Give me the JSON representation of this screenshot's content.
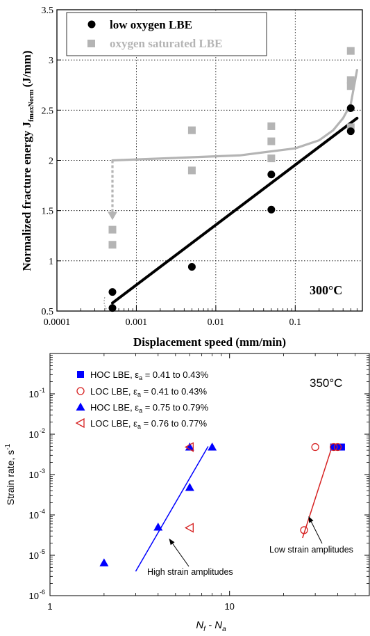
{
  "chart_data": [
    {
      "type": "scatter",
      "xlabel": "Displacement speed (mm/min)",
      "ylabel": "Normalized fracture energy J",
      "ylabel_subscript": "fmaxNorm",
      "ylabel_unit": "(J/mm)",
      "x_scale": "log",
      "xlim": [
        0.0001,
        0.7
      ],
      "ylim": [
        0.5,
        3.5
      ],
      "x_tick_labels": [
        "0.0001",
        "0.001",
        "0.01",
        "0.1"
      ],
      "y_tick_labels": [
        "0.5",
        "1",
        "1.5",
        "2",
        "2.5",
        "3",
        "3.5"
      ],
      "grid": "dotted",
      "legend_position": "top-left",
      "annotation": "300°C",
      "series": [
        {
          "name": "low oxygen LBE",
          "marker": "circle",
          "color": "#000000",
          "points": [
            [
              0.0005,
              0.69
            ],
            [
              0.0005,
              0.53
            ],
            [
              0.005,
              0.94
            ],
            [
              0.05,
              1.86
            ],
            [
              0.05,
              1.51
            ],
            [
              0.5,
              2.52
            ],
            [
              0.5,
              2.29
            ]
          ]
        },
        {
          "name": "oxygen saturated LBE",
          "marker": "square",
          "color": "#b4b4b4",
          "points": [
            [
              0.0005,
              1.31
            ],
            [
              0.0005,
              1.16
            ],
            [
              0.005,
              2.3
            ],
            [
              0.005,
              1.9
            ],
            [
              0.05,
              2.34
            ],
            [
              0.05,
              2.19
            ],
            [
              0.05,
              2.02
            ],
            [
              0.5,
              3.09
            ],
            [
              0.5,
              2.8
            ],
            [
              0.5,
              2.74
            ],
            [
              0.5,
              2.33
            ]
          ]
        }
      ],
      "fit_lines": [
        {
          "color": "#000000",
          "points": [
            [
              0.0005,
              0.58
            ],
            [
              0.6,
              2.42
            ]
          ]
        },
        {
          "color": "#b4b4b4",
          "points": [
            [
              0.0005,
              2.0
            ],
            [
              0.02,
              2.05
            ],
            [
              0.1,
              2.12
            ],
            [
              0.2,
              2.2
            ],
            [
              0.3,
              2.3
            ],
            [
              0.4,
              2.42
            ],
            [
              0.5,
              2.56
            ],
            [
              0.6,
              2.9
            ]
          ]
        }
      ],
      "arrow": {
        "color": "#b4b4b4",
        "from": [
          0.0005,
          2.0
        ],
        "to": [
          0.0005,
          1.42
        ]
      }
    },
    {
      "type": "scatter",
      "xlabel_main": "N",
      "xlabel_sub1": "f",
      "xlabel_mid": " - N",
      "xlabel_sub2": "a",
      "ylabel": "Strain rate, s",
      "ylabel_sup": "-1",
      "x_scale": "log",
      "y_scale": "log",
      "xlim": [
        1,
        60
      ],
      "ylim": [
        1e-06,
        1
      ],
      "x_tick_labels": [
        "1",
        "10"
      ],
      "y_tick_labels": [
        {
          "base": "10",
          "exp": "-6"
        },
        {
          "base": "10",
          "exp": "-5"
        },
        {
          "base": "10",
          "exp": "-4"
        },
        {
          "base": "10",
          "exp": "-3"
        },
        {
          "base": "10",
          "exp": "-2"
        },
        {
          "base": "10",
          "exp": "-1"
        }
      ],
      "legend_position": "top-left",
      "annotation": "350°C",
      "series": [
        {
          "name_pre": "HOC LBE, ε",
          "name_sub": "a",
          "name_post": " = 0.41 to 0.43%",
          "marker": "square-filled",
          "color": "#0000ff",
          "points": [
            [
              38,
              0.0048
            ],
            [
              40,
              0.0048
            ],
            [
              42,
              0.0048
            ]
          ]
        },
        {
          "name_pre": "LOC LBE, ε",
          "name_sub": "a",
          "name_post": " = 0.41 to 0.43%",
          "marker": "circle-open",
          "color": "#d62020",
          "points": [
            [
              30,
              0.0048
            ],
            [
              38,
              0.0048
            ],
            [
              40,
              0.0048
            ],
            [
              26,
              4.2e-05
            ]
          ]
        },
        {
          "name_pre": "HOC LBE, ε",
          "name_sub": "a",
          "name_post": " = 0.75 to 0.79%",
          "marker": "triangle-up-filled",
          "color": "#0000ff",
          "points": [
            [
              2,
              6.5e-06
            ],
            [
              4,
              5e-05
            ],
            [
              6,
              0.00048
            ],
            [
              6,
              0.0048
            ],
            [
              8,
              0.0048
            ]
          ]
        },
        {
          "name_pre": "LOC LBE, ε",
          "name_sub": "a",
          "name_post": " = 0.76 to 0.77%",
          "marker": "triangle-left-open",
          "color": "#d62020",
          "points": [
            [
              6,
              0.0048
            ],
            [
              6,
              4.8e-05
            ]
          ]
        }
      ],
      "fit_lines": [
        {
          "color": "#0000ff",
          "points": [
            [
              3,
              4e-06
            ],
            [
              7.6,
              0.005
            ]
          ]
        },
        {
          "color": "#d62020",
          "points": [
            [
              25.5,
              2.7e-05
            ],
            [
              37.5,
              0.0055
            ]
          ]
        }
      ],
      "callouts": [
        {
          "text": "High strain amplitudes",
          "arrow_to": [
            4.6,
            2.6e-05
          ]
        },
        {
          "text": "Low strain amplitudes",
          "arrow_to": [
            27.5,
            9.3e-05
          ]
        }
      ]
    }
  ]
}
